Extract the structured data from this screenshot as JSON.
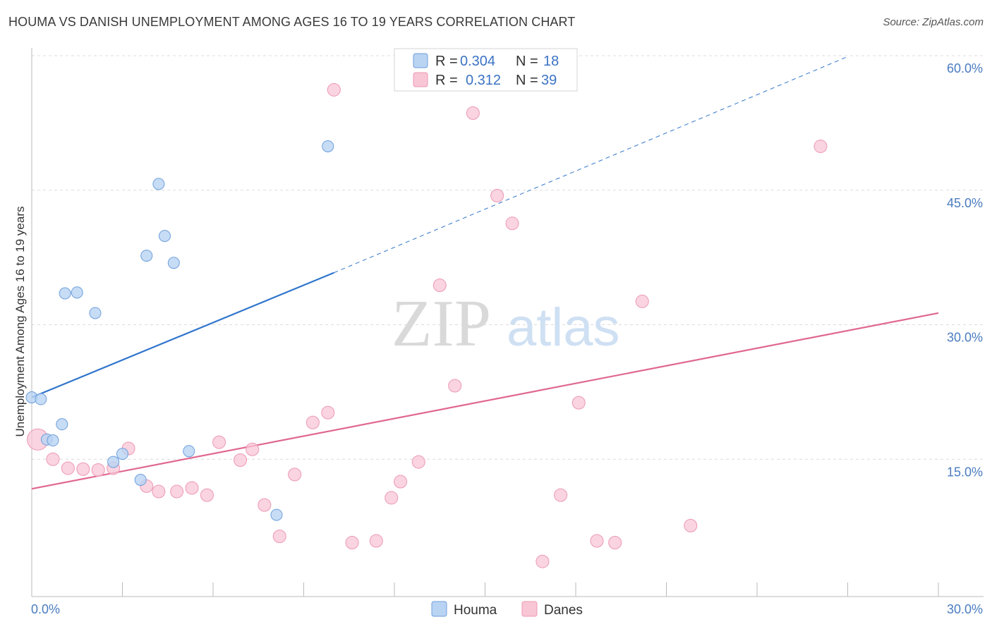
{
  "title": "HOUMA VS DANISH UNEMPLOYMENT AMONG AGES 16 TO 19 YEARS CORRELATION CHART",
  "source": "Source: ZipAtlas.com",
  "watermark": {
    "zip": "ZIP",
    "atlas": "atlas"
  },
  "colors": {
    "houma_fill": "#b9d3f2",
    "houma_stroke": "#6d9fdc",
    "houma_line": "#2f75cc",
    "danes_fill": "#f8c6d5",
    "danes_stroke": "#ec98b4",
    "danes_line": "#e0678f",
    "grid": "#dcdcdc",
    "tick_text": "#4a7cc0"
  },
  "legend": {
    "rows": [
      {
        "r_label": "R =",
        "r_value": "0.304",
        "n_label": "N =",
        "n_value": "18"
      },
      {
        "r_label": "R =",
        "r_value": "0.312",
        "n_label": "N =",
        "n_value": "39"
      }
    ]
  },
  "chart_data": {
    "type": "scatter",
    "title": "HOUMA VS DANISH UNEMPLOYMENT AMONG AGES 16 TO 19 YEARS CORRELATION CHART",
    "xlabel": "",
    "ylabel": "Unemployment Among Ages 16 to 19 years",
    "xlim": [
      0,
      30
    ],
    "ylim": [
      0,
      60
    ],
    "x_tick_labels": [
      "0.0%",
      "30.0%"
    ],
    "y_ticks": [
      15,
      30,
      45,
      60
    ],
    "y_tick_labels": [
      "15.0%",
      "30.0%",
      "45.0%",
      "60.0%"
    ],
    "legend_position": "top-center",
    "series": [
      {
        "name": "Houma",
        "points": [
          [
            0.0,
            21.9
          ],
          [
            0.3,
            21.7
          ],
          [
            0.5,
            17.2
          ],
          [
            0.7,
            17.1
          ],
          [
            1.0,
            18.9
          ],
          [
            1.1,
            33.5
          ],
          [
            1.5,
            33.6
          ],
          [
            2.1,
            31.3
          ],
          [
            2.7,
            14.7
          ],
          [
            3.0,
            15.6
          ],
          [
            3.6,
            12.7
          ],
          [
            3.8,
            37.7
          ],
          [
            4.2,
            45.7
          ],
          [
            4.4,
            39.9
          ],
          [
            4.7,
            36.9
          ],
          [
            5.2,
            15.9
          ],
          [
            8.1,
            8.8
          ],
          [
            9.8,
            49.9
          ]
        ],
        "trend": {
          "x0": 0.0,
          "y0": 21.9,
          "x1": 10.0,
          "y1": 35.8,
          "dash_to_x": 27.0,
          "dash_to_y": 59.9
        }
      },
      {
        "name": "Danes",
        "points": [
          [
            0.2,
            17.2
          ],
          [
            0.7,
            15.0
          ],
          [
            1.2,
            14.0
          ],
          [
            1.7,
            13.9
          ],
          [
            2.2,
            13.8
          ],
          [
            2.7,
            14.0
          ],
          [
            3.2,
            16.2
          ],
          [
            3.8,
            12.0
          ],
          [
            4.2,
            11.4
          ],
          [
            4.8,
            11.4
          ],
          [
            5.3,
            11.8
          ],
          [
            5.8,
            11.0
          ],
          [
            6.2,
            16.9
          ],
          [
            6.9,
            14.9
          ],
          [
            7.3,
            16.1
          ],
          [
            7.7,
            9.9
          ],
          [
            8.2,
            6.4
          ],
          [
            8.7,
            13.3
          ],
          [
            9.3,
            19.1
          ],
          [
            9.8,
            20.2
          ],
          [
            10.0,
            56.2
          ],
          [
            10.6,
            5.7
          ],
          [
            11.4,
            5.9
          ],
          [
            11.9,
            10.7
          ],
          [
            12.2,
            12.5
          ],
          [
            12.8,
            14.7
          ],
          [
            13.5,
            34.4
          ],
          [
            14.0,
            23.2
          ],
          [
            14.6,
            53.6
          ],
          [
            15.4,
            44.4
          ],
          [
            15.9,
            41.3
          ],
          [
            16.9,
            3.6
          ],
          [
            17.5,
            11.0
          ],
          [
            18.1,
            21.3
          ],
          [
            18.7,
            5.9
          ],
          [
            19.3,
            5.7
          ],
          [
            20.2,
            32.6
          ],
          [
            21.8,
            7.6
          ],
          [
            26.1,
            49.9
          ]
        ],
        "trend": {
          "x0": 0.0,
          "y0": 11.7,
          "x1": 30.0,
          "y1": 31.3
        }
      }
    ]
  }
}
